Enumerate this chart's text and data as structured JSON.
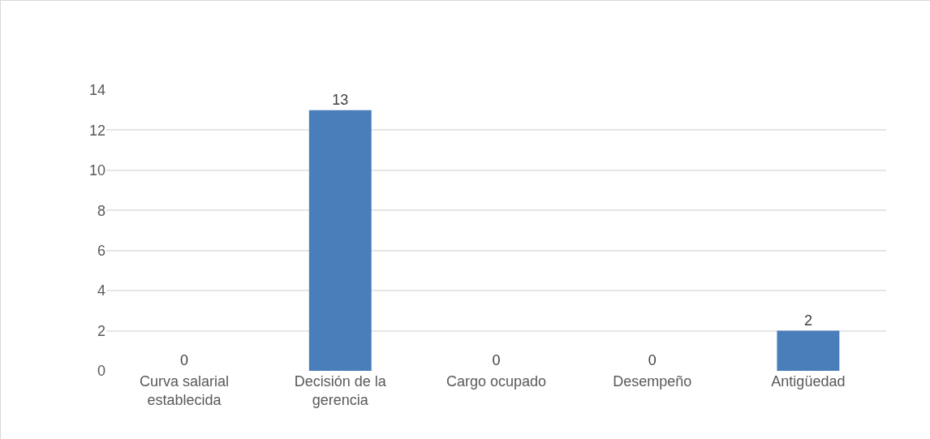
{
  "chart_data": {
    "type": "bar",
    "categories": [
      "Curva salarial establecida",
      "Decisión de la gerencia",
      "Cargo ocupado",
      "Desempeño",
      "Antigüedad"
    ],
    "values": [
      0,
      13,
      0,
      0,
      2
    ],
    "color": "#4a7ebb",
    "ylim": [
      0,
      14
    ],
    "yticks": [
      0,
      2,
      4,
      6,
      8,
      10,
      12,
      14
    ],
    "grid": "y",
    "data_labels": true
  }
}
